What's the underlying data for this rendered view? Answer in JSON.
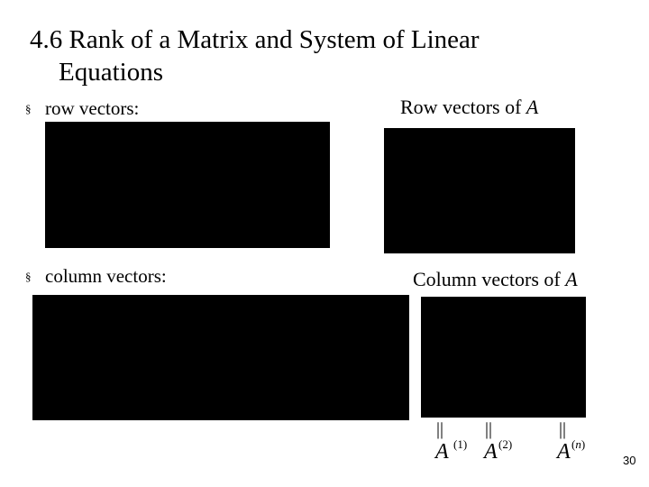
{
  "slide": {
    "title_line1": "4.6 Rank of a Matrix and System of Linear",
    "title_line2": "Equations",
    "bullets": [
      {
        "marker": "§",
        "text": "row vectors:"
      },
      {
        "marker": "§",
        "text": "column vectors:"
      }
    ],
    "row_caption": {
      "text": "Row vectors of ",
      "symbol": "A"
    },
    "column_caption": {
      "text": "Column vectors of ",
      "symbol": "A"
    },
    "column_labels": [
      {
        "eq": "||",
        "symbol": "A",
        "sup_open": "(",
        "sup_index": "1",
        "sup_close": ")"
      },
      {
        "eq": "||",
        "symbol": "A",
        "sup_open": "(",
        "sup_index": "2",
        "sup_close": ")"
      },
      {
        "eq": "||",
        "symbol": "A",
        "sup_open": "(",
        "sup_index": "n",
        "sup_close": ")"
      }
    ],
    "page_number": "30"
  }
}
